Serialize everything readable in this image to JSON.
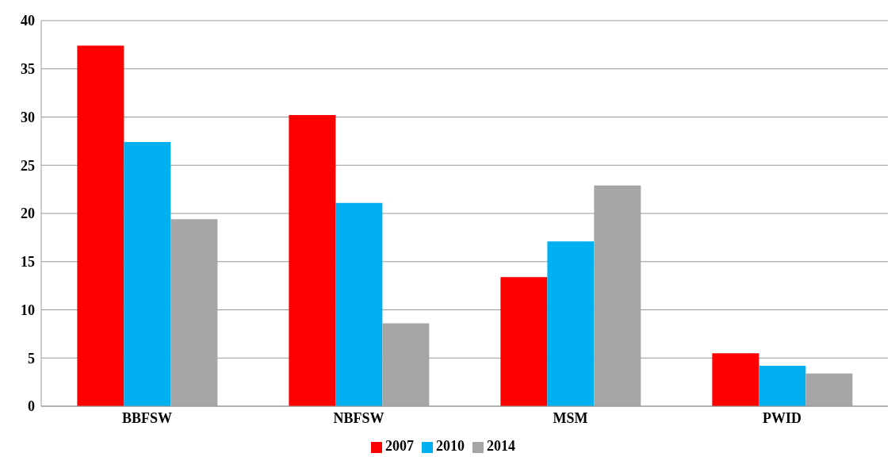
{
  "chart_data": {
    "type": "bar",
    "categories": [
      "BBFSW",
      "NBFSW",
      "MSM",
      "PWID"
    ],
    "series": [
      {
        "name": "2007",
        "color": "#ff0000",
        "values": [
          37.4,
          30.2,
          13.4,
          5.5
        ]
      },
      {
        "name": "2010",
        "color": "#00b0f0",
        "values": [
          27.4,
          21.1,
          17.1,
          4.2
        ]
      },
      {
        "name": "2014",
        "color": "#a6a6a6",
        "values": [
          19.4,
          8.6,
          22.9,
          3.4
        ]
      }
    ],
    "ylim": [
      0,
      40
    ],
    "yticks": [
      0,
      5,
      10,
      15,
      20,
      25,
      30,
      35,
      40
    ],
    "grid": "y",
    "legend": "bottom"
  }
}
